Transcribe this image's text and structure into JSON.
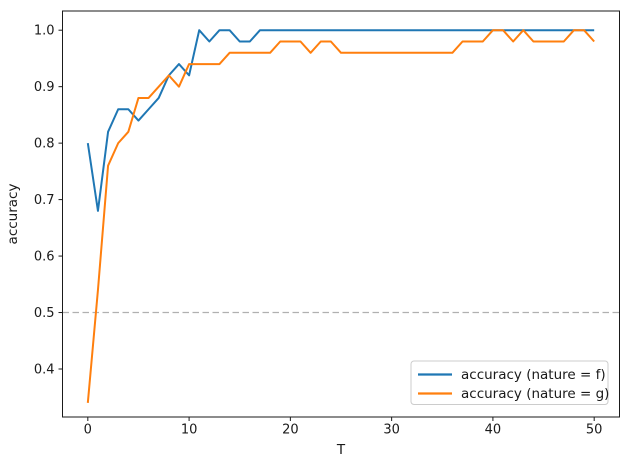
{
  "chart_data": {
    "type": "line",
    "title": "",
    "xlabel": "T",
    "ylabel": "accuracy",
    "x": [
      0,
      1,
      2,
      3,
      4,
      5,
      6,
      7,
      8,
      9,
      10,
      11,
      12,
      13,
      14,
      15,
      16,
      17,
      18,
      19,
      20,
      21,
      22,
      23,
      24,
      25,
      26,
      27,
      28,
      29,
      30,
      31,
      32,
      33,
      34,
      35,
      36,
      37,
      38,
      39,
      40,
      41,
      42,
      43,
      44,
      45,
      46,
      47,
      48,
      49,
      50
    ],
    "series": [
      {
        "label": "accuracy (nature = f)",
        "color": "#1f77b4",
        "values": [
          0.8,
          0.68,
          0.82,
          0.86,
          0.86,
          0.84,
          0.86,
          0.88,
          0.92,
          0.94,
          0.92,
          1.0,
          0.98,
          1.0,
          1.0,
          0.98,
          0.98,
          1.0,
          1.0,
          1.0,
          1.0,
          1.0,
          1.0,
          1.0,
          1.0,
          1.0,
          1.0,
          1.0,
          1.0,
          1.0,
          1.0,
          1.0,
          1.0,
          1.0,
          1.0,
          1.0,
          1.0,
          1.0,
          1.0,
          1.0,
          1.0,
          1.0,
          1.0,
          1.0,
          1.0,
          1.0,
          1.0,
          1.0,
          1.0,
          1.0,
          1.0
        ]
      },
      {
        "label": "accuracy (nature = g)",
        "color": "#ff7f0e",
        "values": [
          0.34,
          0.54,
          0.76,
          0.8,
          0.82,
          0.88,
          0.88,
          0.9,
          0.92,
          0.9,
          0.94,
          0.94,
          0.94,
          0.94,
          0.96,
          0.96,
          0.96,
          0.96,
          0.96,
          0.98,
          0.98,
          0.98,
          0.96,
          0.98,
          0.98,
          0.96,
          0.96,
          0.96,
          0.96,
          0.96,
          0.96,
          0.96,
          0.96,
          0.96,
          0.96,
          0.96,
          0.96,
          0.98,
          0.98,
          0.98,
          1.0,
          1.0,
          0.98,
          1.0,
          0.98,
          0.98,
          0.98,
          0.98,
          1.0,
          1.0,
          0.98
        ]
      }
    ],
    "reference_line": {
      "y": 0.5,
      "color": "#b0b0b0",
      "style": "dashed"
    },
    "xticks": [
      0,
      10,
      20,
      30,
      40,
      50
    ],
    "yticks": [
      0.4,
      0.5,
      0.6,
      0.7,
      0.8,
      0.9,
      1.0
    ],
    "xlim": [
      -2.5,
      52.5
    ],
    "ylim": [
      0.315,
      1.034
    ],
    "grid": false,
    "legend": {
      "position": "lower right"
    }
  }
}
